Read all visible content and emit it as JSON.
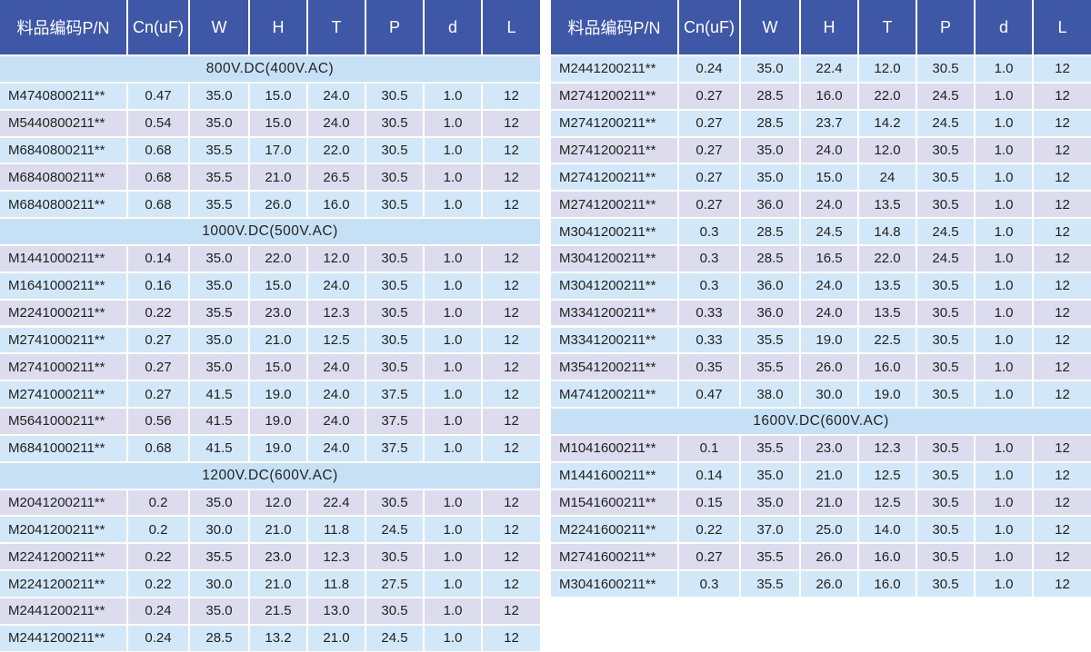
{
  "left": {
    "header": [
      "料品编码P/N",
      "Cn(uF)",
      "W",
      "H",
      "T",
      "P",
      "d",
      "L"
    ],
    "sections": [
      {
        "title": "800V.DC(400V.AC)",
        "rows": [
          [
            "M4740800211**",
            "0.47",
            "35.0",
            "15.0",
            "24.0",
            "30.5",
            "1.0",
            "12"
          ],
          [
            "M5440800211**",
            "0.54",
            "35.0",
            "15.0",
            "24.0",
            "30.5",
            "1.0",
            "12"
          ],
          [
            "M6840800211**",
            "0.68",
            "35.5",
            "17.0",
            "22.0",
            "30.5",
            "1.0",
            "12"
          ],
          [
            "M6840800211**",
            "0.68",
            "35.5",
            "21.0",
            "26.5",
            "30.5",
            "1.0",
            "12"
          ],
          [
            "M6840800211**",
            "0.68",
            "35.5",
            "26.0",
            "16.0",
            "30.5",
            "1.0",
            "12"
          ]
        ]
      },
      {
        "title": "1000V.DC(500V.AC)",
        "rows": [
          [
            "M1441000211**",
            "0.14",
            "35.0",
            "22.0",
            "12.0",
            "30.5",
            "1.0",
            "12"
          ],
          [
            "M1641000211**",
            "0.16",
            "35.0",
            "15.0",
            "24.0",
            "30.5",
            "1.0",
            "12"
          ],
          [
            "M2241000211**",
            "0.22",
            "35.5",
            "23.0",
            "12.3",
            "30.5",
            "1.0",
            "12"
          ],
          [
            "M2741000211**",
            "0.27",
            "35.0",
            "21.0",
            "12.5",
            "30.5",
            "1.0",
            "12"
          ],
          [
            "M2741000211**",
            "0.27",
            "35.0",
            "15.0",
            "24.0",
            "30.5",
            "1.0",
            "12"
          ],
          [
            "M2741000211**",
            "0.27",
            "41.5",
            "19.0",
            "24.0",
            "37.5",
            "1.0",
            "12"
          ],
          [
            "M5641000211**",
            "0.56",
            "41.5",
            "19.0",
            "24.0",
            "37.5",
            "1.0",
            "12"
          ],
          [
            "M6841000211**",
            "0.68",
            "41.5",
            "19.0",
            "24.0",
            "37.5",
            "1.0",
            "12"
          ]
        ]
      },
      {
        "title": "1200V.DC(600V.AC)",
        "rows": [
          [
            "M2041200211**",
            "0.2",
            "35.0",
            "12.0",
            "22.4",
            "30.5",
            "1.0",
            "12"
          ],
          [
            "M2041200211**",
            "0.2",
            "30.0",
            "21.0",
            "11.8",
            "24.5",
            "1.0",
            "12"
          ],
          [
            "M2241200211**",
            "0.22",
            "35.5",
            "23.0",
            "12.3",
            "30.5",
            "1.0",
            "12"
          ],
          [
            "M2241200211**",
            "0.22",
            "30.0",
            "21.0",
            "11.8",
            "27.5",
            "1.0",
            "12"
          ],
          [
            "M2441200211**",
            "0.24",
            "35.0",
            "21.5",
            "13.0",
            "30.5",
            "1.0",
            "12"
          ],
          [
            "M2441200211**",
            "0.24",
            "28.5",
            "13.2",
            "21.0",
            "24.5",
            "1.0",
            "12"
          ]
        ]
      }
    ]
  },
  "right": {
    "header": [
      "料品编码P/N",
      "Cn(uF)",
      "W",
      "H",
      "T",
      "P",
      "d",
      "L"
    ],
    "sections": [
      {
        "rows": [
          [
            "M2441200211**",
            "0.24",
            "35.0",
            "22.4",
            "12.0",
            "30.5",
            "1.0",
            "12"
          ],
          [
            "M2741200211**",
            "0.27",
            "28.5",
            "16.0",
            "22.0",
            "24.5",
            "1.0",
            "12"
          ],
          [
            "M2741200211**",
            "0.27",
            "28.5",
            "23.7",
            "14.2",
            "24.5",
            "1.0",
            "12"
          ],
          [
            "M2741200211**",
            "0.27",
            "35.0",
            "24.0",
            "12.0",
            "30.5",
            "1.0",
            "12"
          ],
          [
            "M2741200211**",
            "0.27",
            "35.0",
            "15.0",
            "24",
            "30.5",
            "1.0",
            "12"
          ],
          [
            "M2741200211**",
            "0.27",
            "36.0",
            "24.0",
            "13.5",
            "30.5",
            "1.0",
            "12"
          ],
          [
            "M3041200211**",
            "0.3",
            "28.5",
            "24.5",
            "14.8",
            "24.5",
            "1.0",
            "12"
          ],
          [
            "M3041200211**",
            "0.3",
            "28.5",
            "16.5",
            "22.0",
            "24.5",
            "1.0",
            "12"
          ],
          [
            "M3041200211**",
            "0.3",
            "36.0",
            "24.0",
            "13.5",
            "30.5",
            "1.0",
            "12"
          ],
          [
            "M3341200211**",
            "0.33",
            "36.0",
            "24.0",
            "13.5",
            "30.5",
            "1.0",
            "12"
          ],
          [
            "M3341200211**",
            "0.33",
            "35.5",
            "19.0",
            "22.5",
            "30.5",
            "1.0",
            "12"
          ],
          [
            "M3541200211**",
            "0.35",
            "35.5",
            "26.0",
            "16.0",
            "30.5",
            "1.0",
            "12"
          ],
          [
            "M4741200211**",
            "0.47",
            "38.0",
            "30.0",
            "19.0",
            "30.5",
            "1.0",
            "12"
          ]
        ]
      },
      {
        "title": "1600V.DC(600V.AC)",
        "rows": [
          [
            "M1041600211**",
            "0.1",
            "35.5",
            "23.0",
            "12.3",
            "30.5",
            "1.0",
            "12"
          ],
          [
            "M1441600211**",
            "0.14",
            "35.0",
            "21.0",
            "12.5",
            "30.5",
            "1.0",
            "12"
          ],
          [
            "M1541600211**",
            "0.15",
            "35.0",
            "21.0",
            "12.5",
            "30.5",
            "1.0",
            "12"
          ],
          [
            "M2241600211**",
            "0.22",
            "37.0",
            "25.0",
            "14.0",
            "30.5",
            "1.0",
            "12"
          ],
          [
            "M2741600211**",
            "0.27",
            "35.5",
            "26.0",
            "16.0",
            "30.5",
            "1.0",
            "12"
          ],
          [
            "M3041600211**",
            "0.3",
            "35.5",
            "26.0",
            "16.0",
            "30.5",
            "1.0",
            "12"
          ]
        ]
      }
    ]
  }
}
